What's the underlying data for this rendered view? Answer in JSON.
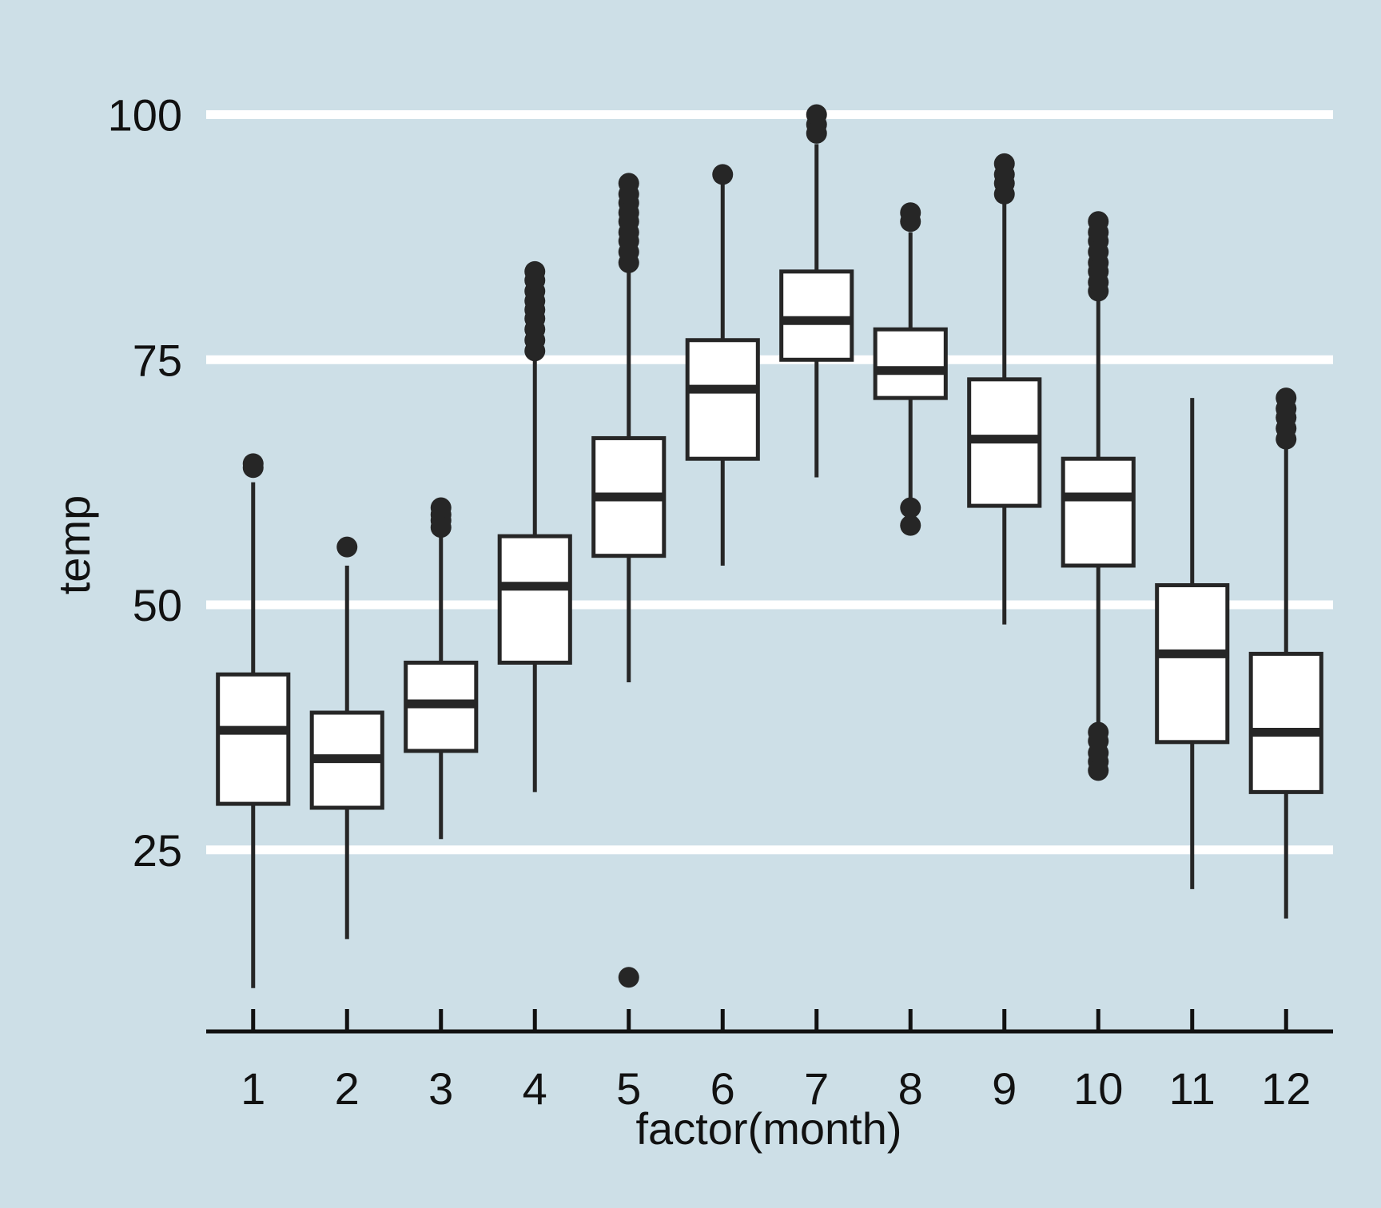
{
  "chart_data": {
    "type": "boxplot",
    "title": "",
    "xlabel": "factor(month)",
    "ylabel": "temp",
    "ylim": [
      6.4,
      104.2
    ],
    "y_ticks": [
      25,
      50,
      75,
      100
    ],
    "grid": "horizontal major lines only",
    "colors": {
      "background": "#cddfe7",
      "gridline": "#ffffff",
      "box_fill": "#ffffff",
      "stroke": "#262626"
    },
    "categories": [
      "1",
      "2",
      "3",
      "4",
      "5",
      "6",
      "7",
      "8",
      "9",
      "10",
      "11",
      "12"
    ],
    "boxes": [
      {
        "month": "1",
        "lower_whisker": 10.9,
        "q1": 29.7,
        "median": 37.2,
        "q3": 42.9,
        "upper_whisker": 62.5,
        "outliers": [
          64.0,
          64.4
        ]
      },
      {
        "month": "2",
        "lower_whisker": 15.9,
        "q1": 29.3,
        "median": 34.3,
        "q3": 39.0,
        "upper_whisker": 54.0,
        "outliers": [
          55.9
        ]
      },
      {
        "month": "3",
        "lower_whisker": 26.1,
        "q1": 35.1,
        "median": 39.9,
        "q3": 44.1,
        "upper_whisker": 57.9,
        "outliers": [
          57.9,
          58.6,
          59.2,
          59.9
        ]
      },
      {
        "month": "4",
        "lower_whisker": 30.9,
        "q1": 44.1,
        "median": 51.9,
        "q3": 57.0,
        "upper_whisker": 75.9,
        "outliers": [
          75.9,
          77.0,
          78.1,
          79.2,
          80.1,
          81.0,
          82.0,
          83.1,
          84.0
        ]
      },
      {
        "month": "5",
        "lower_whisker": 42.1,
        "q1": 55.0,
        "median": 61.0,
        "q3": 67.0,
        "upper_whisker": 84.9,
        "outliers": [
          12.0,
          84.9,
          86.0,
          87.1,
          88.0,
          89.1,
          90.0,
          91.0,
          91.9,
          93.0
        ]
      },
      {
        "month": "6",
        "lower_whisker": 54.0,
        "q1": 64.9,
        "median": 72.0,
        "q3": 77.0,
        "upper_whisker": 93.0,
        "outliers": [
          93.9
        ]
      },
      {
        "month": "7",
        "lower_whisker": 63.0,
        "q1": 75.0,
        "median": 79.0,
        "q3": 84.0,
        "upper_whisker": 97.0,
        "outliers": [
          98.1,
          99.0,
          100.0
        ]
      },
      {
        "month": "8",
        "lower_whisker": 60.1,
        "q1": 71.1,
        "median": 73.9,
        "q3": 78.1,
        "upper_whisker": 88.0,
        "outliers": [
          58.1,
          59.9,
          89.1,
          90.0
        ]
      },
      {
        "month": "9",
        "lower_whisker": 48.0,
        "q1": 60.1,
        "median": 66.9,
        "q3": 73.0,
        "upper_whisker": 91.0,
        "outliers": [
          91.9,
          93.0,
          93.9,
          95.0
        ]
      },
      {
        "month": "10",
        "lower_whisker": 37.0,
        "q1": 54.0,
        "median": 61.0,
        "q3": 64.9,
        "upper_whisker": 82.0,
        "outliers": [
          33.1,
          34.0,
          34.9,
          36.1,
          37.0,
          82.0,
          82.9,
          84.0,
          84.9,
          86.0,
          87.1,
          88.0,
          89.1
        ]
      },
      {
        "month": "11",
        "lower_whisker": 21.0,
        "q1": 36.0,
        "median": 45.0,
        "q3": 52.0,
        "upper_whisker": 71.1,
        "outliers": []
      },
      {
        "month": "12",
        "lower_whisker": 18.0,
        "q1": 30.9,
        "median": 37.0,
        "q3": 45.0,
        "upper_whisker": 66.0,
        "outliers": [
          66.9,
          68.0,
          69.1,
          70.0,
          71.1
        ]
      }
    ]
  }
}
